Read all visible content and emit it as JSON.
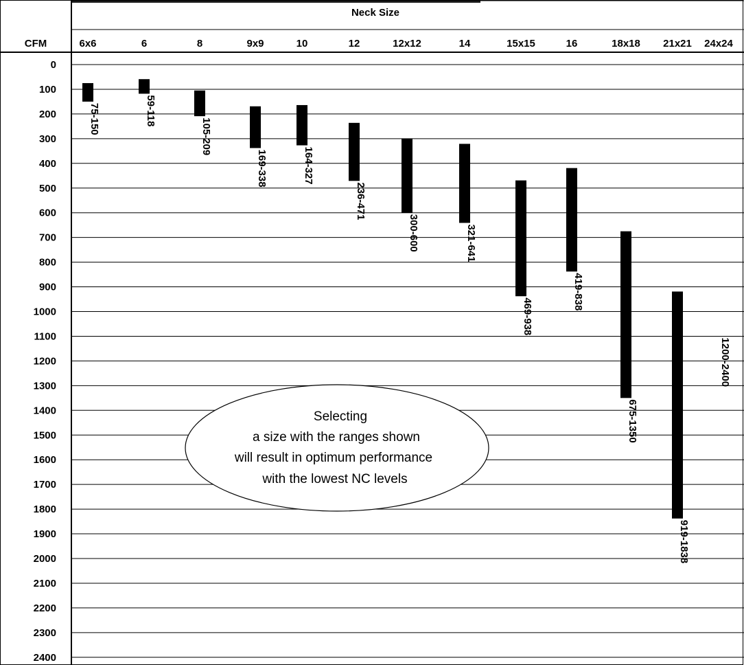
{
  "chart_data": {
    "type": "bar",
    "orientation": "range-bars",
    "title": "Neck Size",
    "ylabel": "CFM",
    "ylim": [
      0,
      2400
    ],
    "y_ticks": [
      "0",
      "100",
      "200",
      "300",
      "400",
      "500",
      "600",
      "700",
      "800",
      "900",
      "1000",
      "1100",
      "1200",
      "1300",
      "1400",
      "1500",
      "1600",
      "1700",
      "1800",
      "1900",
      "2000",
      "2100",
      "2200",
      "2300",
      "2400"
    ],
    "y_inverted": true,
    "grid": true,
    "categories": [
      "6x6",
      "6",
      "8",
      "9x9",
      "10",
      "12",
      "12x12",
      "14",
      "15x15",
      "16",
      "18x18",
      "21x21",
      "24x24"
    ],
    "series": [
      {
        "ranges": [
          {
            "category": "6x6",
            "low": 75,
            "high": 150,
            "label": "75-150"
          },
          {
            "category": "6",
            "low": 59,
            "high": 118,
            "label": "59-118"
          },
          {
            "category": "8",
            "low": 105,
            "high": 209,
            "label": "105-209"
          },
          {
            "category": "9x9",
            "low": 169,
            "high": 338,
            "label": "169-338"
          },
          {
            "category": "10",
            "low": 164,
            "high": 327,
            "label": "164-327"
          },
          {
            "category": "12",
            "low": 236,
            "high": 471,
            "label": "236-471"
          },
          {
            "category": "12x12",
            "low": 300,
            "high": 600,
            "label": "300-600"
          },
          {
            "category": "14",
            "low": 321,
            "high": 641,
            "label": "321-641"
          },
          {
            "category": "15x15",
            "low": 469,
            "high": 938,
            "label": "469-938"
          },
          {
            "category": "16",
            "low": 419,
            "high": 838,
            "label": "419-838"
          },
          {
            "category": "18x18",
            "low": 675,
            "high": 1350,
            "label": "675-1350"
          },
          {
            "category": "21x21",
            "low": 919,
            "high": 1838,
            "label": "919-1838"
          },
          {
            "category": "24x24",
            "low": 1200,
            "high": 2400,
            "label": "1200-2400",
            "bar_drawn": false
          }
        ]
      }
    ],
    "annotation": {
      "lines": [
        "Selecting",
        "a size with the ranges shown",
        "will result in optimum performance",
        "with the lowest NC levels"
      ]
    },
    "colors": {
      "bar": "#000000",
      "grid": "#000000",
      "background": "#ffffff"
    }
  }
}
